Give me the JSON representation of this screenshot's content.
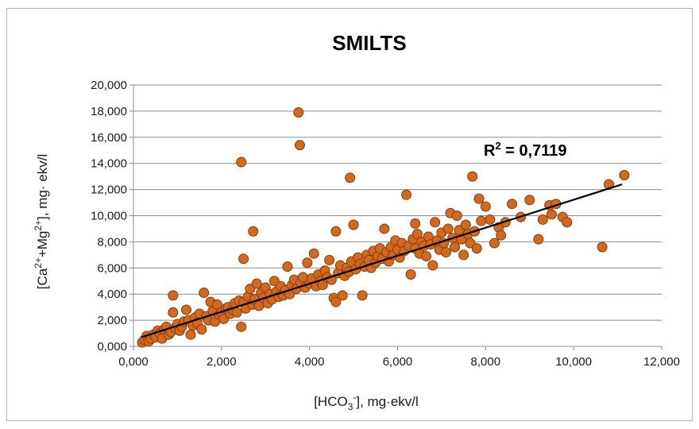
{
  "chart_data": {
    "type": "scatter",
    "title": "SMILTS",
    "xlabel": "[HCO3-], mg·ekv/l",
    "xlabel_parts": {
      "pre": "[HCO",
      "sub": "3",
      "sup": "-",
      "post": "], mg·ekv/l"
    },
    "ylabel": "[Ca2++Mg2+], mg· ekv/l",
    "ylabel_parts": {
      "pre": "[Ca",
      "sup1": "2+",
      "mid": "+Mg",
      "sup2": "2+",
      "post": "], mg· ekv/l"
    },
    "xlim": [
      0,
      12
    ],
    "ylim": [
      0,
      20
    ],
    "x_ticks": [
      "0,000",
      "2,000",
      "4,000",
      "6,000",
      "8,000",
      "10,000",
      "12,000"
    ],
    "y_ticks": [
      "0,000",
      "2,000",
      "4,000",
      "6,000",
      "8,000",
      "10,000",
      "12,000",
      "14,000",
      "16,000",
      "18,000",
      "20,000"
    ],
    "grid": "horizontal",
    "marker_color": "#d2691e",
    "trendline": {
      "x": [
        0.18,
        11.1
      ],
      "y": [
        0.7,
        12.4
      ],
      "color": "#000000"
    },
    "annotation": {
      "text_pre": "R",
      "text_sup": "2",
      "text_post": " = 0,7119"
    },
    "points": [
      [
        0.2,
        0.3
      ],
      [
        0.25,
        0.5
      ],
      [
        0.3,
        0.8
      ],
      [
        0.35,
        0.4
      ],
      [
        0.4,
        0.6
      ],
      [
        0.45,
        0.9
      ],
      [
        0.5,
        0.7
      ],
      [
        0.55,
        1.2
      ],
      [
        0.6,
        1.0
      ],
      [
        0.65,
        0.6
      ],
      [
        0.7,
        1.3
      ],
      [
        0.75,
        1.5
      ],
      [
        0.8,
        0.9
      ],
      [
        0.85,
        1.1
      ],
      [
        0.9,
        3.9
      ],
      [
        0.9,
        2.6
      ],
      [
        0.95,
        1.4
      ],
      [
        1.0,
        1.7
      ],
      [
        1.05,
        1.2
      ],
      [
        1.1,
        1.5
      ],
      [
        1.15,
        1.9
      ],
      [
        1.2,
        2.8
      ],
      [
        1.25,
        2.0
      ],
      [
        1.3,
        0.9
      ],
      [
        1.35,
        1.6
      ],
      [
        1.4,
        2.2
      ],
      [
        1.45,
        1.8
      ],
      [
        1.5,
        2.5
      ],
      [
        1.55,
        1.3
      ],
      [
        1.6,
        4.1
      ],
      [
        1.65,
        2.3
      ],
      [
        1.7,
        2.0
      ],
      [
        1.75,
        3.4
      ],
      [
        1.8,
        2.7
      ],
      [
        1.85,
        1.9
      ],
      [
        1.9,
        3.2
      ],
      [
        1.95,
        2.4
      ],
      [
        2.0,
        2.6
      ],
      [
        2.05,
        2.1
      ],
      [
        2.1,
        2.9
      ],
      [
        2.15,
        3.0
      ],
      [
        2.2,
        2.5
      ],
      [
        2.25,
        2.8
      ],
      [
        2.3,
        3.3
      ],
      [
        2.35,
        2.6
      ],
      [
        2.4,
        3.5
      ],
      [
        2.45,
        1.5
      ],
      [
        2.45,
        14.1
      ],
      [
        2.5,
        3.4
      ],
      [
        2.5,
        6.7
      ],
      [
        2.55,
        2.9
      ],
      [
        2.6,
        3.8
      ],
      [
        2.65,
        4.4
      ],
      [
        2.7,
        3.2
      ],
      [
        2.72,
        8.8
      ],
      [
        2.75,
        3.6
      ],
      [
        2.8,
        4.8
      ],
      [
        2.85,
        3.1
      ],
      [
        2.9,
        4.1
      ],
      [
        2.95,
        3.7
      ],
      [
        3.0,
        4.5
      ],
      [
        3.05,
        3.3
      ],
      [
        3.1,
        4.0
      ],
      [
        3.15,
        3.6
      ],
      [
        3.2,
        5.0
      ],
      [
        3.25,
        4.2
      ],
      [
        3.3,
        3.8
      ],
      [
        3.35,
        4.6
      ],
      [
        3.4,
        3.9
      ],
      [
        3.45,
        4.3
      ],
      [
        3.5,
        6.1
      ],
      [
        3.55,
        4.0
      ],
      [
        3.6,
        4.7
      ],
      [
        3.65,
        5.1
      ],
      [
        3.7,
        4.4
      ],
      [
        3.75,
        17.9
      ],
      [
        3.78,
        15.4
      ],
      [
        3.8,
        4.9
      ],
      [
        3.85,
        5.3
      ],
      [
        3.9,
        4.5
      ],
      [
        3.95,
        6.4
      ],
      [
        4.0,
        4.8
      ],
      [
        4.05,
        5.2
      ],
      [
        4.1,
        7.1
      ],
      [
        4.15,
        4.6
      ],
      [
        4.2,
        5.5
      ],
      [
        4.25,
        5.0
      ],
      [
        4.3,
        4.7
      ],
      [
        4.35,
        5.8
      ],
      [
        4.4,
        5.3
      ],
      [
        4.45,
        6.6
      ],
      [
        4.5,
        5.1
      ],
      [
        4.55,
        3.7
      ],
      [
        4.6,
        8.8
      ],
      [
        4.6,
        3.4
      ],
      [
        4.65,
        5.6
      ],
      [
        4.7,
        6.2
      ],
      [
        4.75,
        3.9
      ],
      [
        4.8,
        5.4
      ],
      [
        4.85,
        6.0
      ],
      [
        4.9,
        5.7
      ],
      [
        4.92,
        12.9
      ],
      [
        4.95,
        6.5
      ],
      [
        5.0,
        9.3
      ],
      [
        5.05,
        5.9
      ],
      [
        5.1,
        6.8
      ],
      [
        5.15,
        6.3
      ],
      [
        5.2,
        3.9
      ],
      [
        5.25,
        6.1
      ],
      [
        5.3,
        7.0
      ],
      [
        5.35,
        6.6
      ],
      [
        5.4,
        6.0
      ],
      [
        5.45,
        7.3
      ],
      [
        5.5,
        6.4
      ],
      [
        5.55,
        6.9
      ],
      [
        5.6,
        7.5
      ],
      [
        5.65,
        6.7
      ],
      [
        5.7,
        9.0
      ],
      [
        5.75,
        7.2
      ],
      [
        5.8,
        6.5
      ],
      [
        5.85,
        7.6
      ],
      [
        5.9,
        7.0
      ],
      [
        5.95,
        8.1
      ],
      [
        6.0,
        7.4
      ],
      [
        6.05,
        6.8
      ],
      [
        6.1,
        7.9
      ],
      [
        6.15,
        7.3
      ],
      [
        6.2,
        11.6
      ],
      [
        6.25,
        7.7
      ],
      [
        6.3,
        5.5
      ],
      [
        6.35,
        8.2
      ],
      [
        6.4,
        7.5
      ],
      [
        6.4,
        9.4
      ],
      [
        6.45,
        8.6
      ],
      [
        6.5,
        7.1
      ],
      [
        6.55,
        8.0
      ],
      [
        6.6,
        7.7
      ],
      [
        6.65,
        6.9
      ],
      [
        6.7,
        8.4
      ],
      [
        6.75,
        7.8
      ],
      [
        6.8,
        6.2
      ],
      [
        6.85,
        9.5
      ],
      [
        6.9,
        8.1
      ],
      [
        6.95,
        7.4
      ],
      [
        7.0,
        8.7
      ],
      [
        7.05,
        7.9
      ],
      [
        7.1,
        7.2
      ],
      [
        7.15,
        9.0
      ],
      [
        7.2,
        10.2
      ],
      [
        7.25,
        8.3
      ],
      [
        7.3,
        7.6
      ],
      [
        7.35,
        10.0
      ],
      [
        7.4,
        8.9
      ],
      [
        7.45,
        8.2
      ],
      [
        7.5,
        7.0
      ],
      [
        7.55,
        9.3
      ],
      [
        7.6,
        8.6
      ],
      [
        7.65,
        7.9
      ],
      [
        7.7,
        13.0
      ],
      [
        7.75,
        8.8
      ],
      [
        7.8,
        7.5
      ],
      [
        7.85,
        11.3
      ],
      [
        7.9,
        9.6
      ],
      [
        8.0,
        10.7
      ],
      [
        8.1,
        9.7
      ],
      [
        8.2,
        7.9
      ],
      [
        8.3,
        9.1
      ],
      [
        8.35,
        8.5
      ],
      [
        8.45,
        9.5
      ],
      [
        8.6,
        10.9
      ],
      [
        8.8,
        9.9
      ],
      [
        9.0,
        11.2
      ],
      [
        9.2,
        8.2
      ],
      [
        9.3,
        9.7
      ],
      [
        9.45,
        10.8
      ],
      [
        9.5,
        10.1
      ],
      [
        9.6,
        10.9
      ],
      [
        9.75,
        9.9
      ],
      [
        9.85,
        9.5
      ],
      [
        10.65,
        7.6
      ],
      [
        10.8,
        12.4
      ],
      [
        11.15,
        13.1
      ]
    ]
  }
}
